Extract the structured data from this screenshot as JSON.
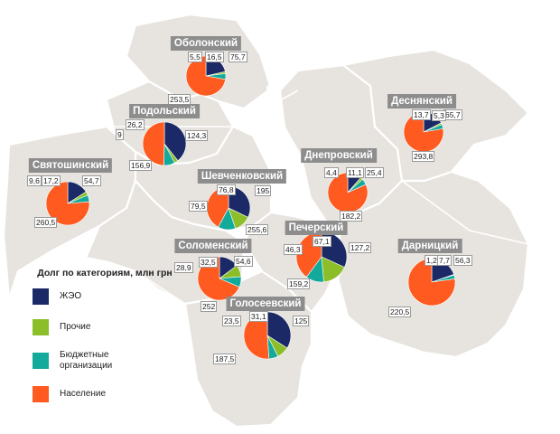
{
  "colors": {
    "zheo": "#1b2a66",
    "other": "#8cbe2a",
    "budget": "#13aa9c",
    "population": "#ff5a1f"
  },
  "legend": {
    "title": "Долг по категориям, млн грн",
    "items": [
      {
        "key": "zheo",
        "label": "ЖЭО",
        "color": "#1b2a66"
      },
      {
        "key": "other",
        "label": "Прочие",
        "color": "#8cbe2a"
      },
      {
        "key": "budget",
        "label": "Бюджетные организации",
        "color": "#13aa9c"
      },
      {
        "key": "population",
        "label": "Население",
        "color": "#ff5a1f"
      }
    ]
  },
  "chart_data": {
    "type": "pie",
    "categories": [
      "ЖЭО",
      "Прочие",
      "Бюджетные организации",
      "Население"
    ],
    "districts": [
      {
        "name": "Оболонский",
        "zheo": "75,7",
        "other": "5,5",
        "budget": "16,5",
        "population": "253,5"
      },
      {
        "name": "Подольский",
        "zheo": "124,3",
        "other": "9",
        "budget": "26,2",
        "population": "156,9"
      },
      {
        "name": "Святошинский",
        "zheo": "54,7",
        "other": "9,6",
        "budget": "17,2",
        "population": "260,5"
      },
      {
        "name": "Шевченковский",
        "zheo": "195",
        "other": "76,8",
        "budget": "79,5",
        "population": "255,6"
      },
      {
        "name": "Соломенский",
        "zheo": "54,6",
        "other": "32,5",
        "budget": "28,9",
        "population": "252"
      },
      {
        "name": "Голосеевский",
        "zheo": "125",
        "other": "31,1",
        "budget": "23,5",
        "population": "187,5"
      },
      {
        "name": "Печерский",
        "zheo": "127,2",
        "other": "67,1",
        "budget": "46,3",
        "population": "159,2"
      },
      {
        "name": "Днепровский",
        "zheo": "25,4",
        "other": "4,4",
        "budget": "11,1",
        "population": "182,2"
      },
      {
        "name": "Деснянский",
        "zheo": "65,7",
        "other": "5,3",
        "budget": "13,7",
        "population": "293,8"
      },
      {
        "name": "Дарницкий",
        "zheo": "56,3",
        "other": "1,2",
        "budget": "7,7",
        "population": "220,5"
      }
    ]
  }
}
